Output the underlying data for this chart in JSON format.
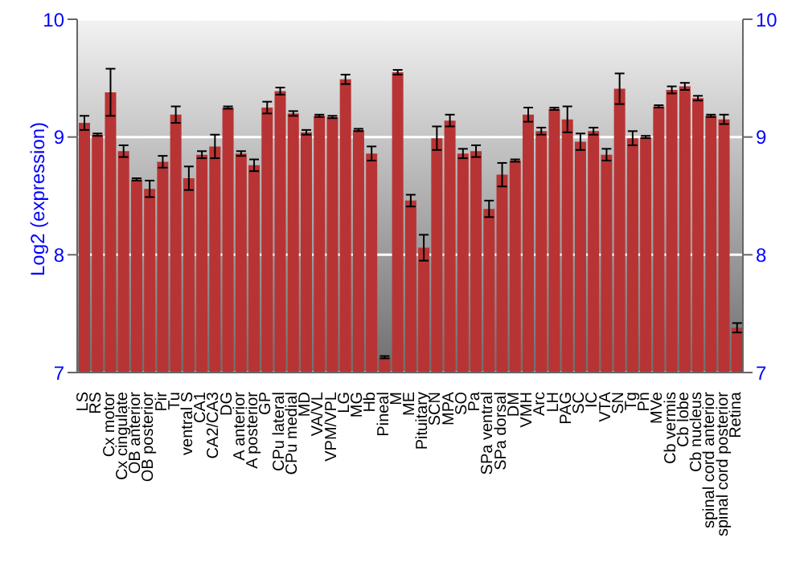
{
  "chart_data": {
    "type": "bar",
    "ylabel": "Log2 (expression)",
    "categories": [
      "LS",
      "RS",
      "Cx motor",
      "Cx cingulate",
      "OB anterior",
      "OB posterior",
      "Pir",
      "Tu",
      "ventral S",
      "CA1",
      "CA2/CA3",
      "DG",
      "A anterior",
      "A posterior",
      "GP",
      "CPu lateral",
      "CPu medial",
      "MD",
      "VA/VL",
      "VPM/VPL",
      "LG",
      "MG",
      "Hb",
      "Pineal",
      "M",
      "ME",
      "Pituitary",
      "SCN",
      "MPA",
      "SO",
      "Pa",
      "SPa ventral",
      "SPa dorsal",
      "DM",
      "VMH",
      "Arc",
      "LH",
      "PAG",
      "SC",
      "IC",
      "VTA",
      "SN",
      "Tg",
      "Pn",
      "MVe",
      "Cb vermis",
      "Cb lobe",
      "Cb nucleus",
      "spinal cord anterior",
      "spinal cord posterior",
      "Retina"
    ],
    "values": [
      9.12,
      9.02,
      9.38,
      8.88,
      8.64,
      8.56,
      8.79,
      9.19,
      8.65,
      8.85,
      8.92,
      9.25,
      8.86,
      8.76,
      9.25,
      9.39,
      9.2,
      9.04,
      9.18,
      9.17,
      9.49,
      9.06,
      8.86,
      7.13,
      9.55,
      8.46,
      8.06,
      8.99,
      9.14,
      8.86,
      8.88,
      8.39,
      8.68,
      8.8,
      9.19,
      9.05,
      9.24,
      9.15,
      8.96,
      9.05,
      8.85,
      9.41,
      8.99,
      9,
      9.26,
      9.4,
      9.43,
      9.33,
      9.18,
      9.15,
      7.38
    ],
    "errors": [
      0.06,
      0.01,
      0.2,
      0.05,
      0.01,
      0.07,
      0.05,
      0.07,
      0.1,
      0.03,
      0.1,
      0.01,
      0.02,
      0.05,
      0.05,
      0.03,
      0.02,
      0.02,
      0.01,
      0.01,
      0.04,
      0.01,
      0.06,
      0.01,
      0.02,
      0.05,
      0.11,
      0.1,
      0.05,
      0.04,
      0.05,
      0.07,
      0.1,
      0.01,
      0.06,
      0.03,
      0.01,
      0.11,
      0.07,
      0.03,
      0.05,
      0.13,
      0.06,
      0.01,
      0.01,
      0.03,
      0.03,
      0.02,
      0.01,
      0.04,
      0.04
    ],
    "color": "#b83434",
    "ylim": [
      7,
      10
    ],
    "yticks": [
      7,
      8,
      9,
      10
    ],
    "y2lim": [
      7,
      10
    ],
    "y2ticks": [
      7,
      8,
      9,
      10
    ],
    "grid": "y"
  }
}
